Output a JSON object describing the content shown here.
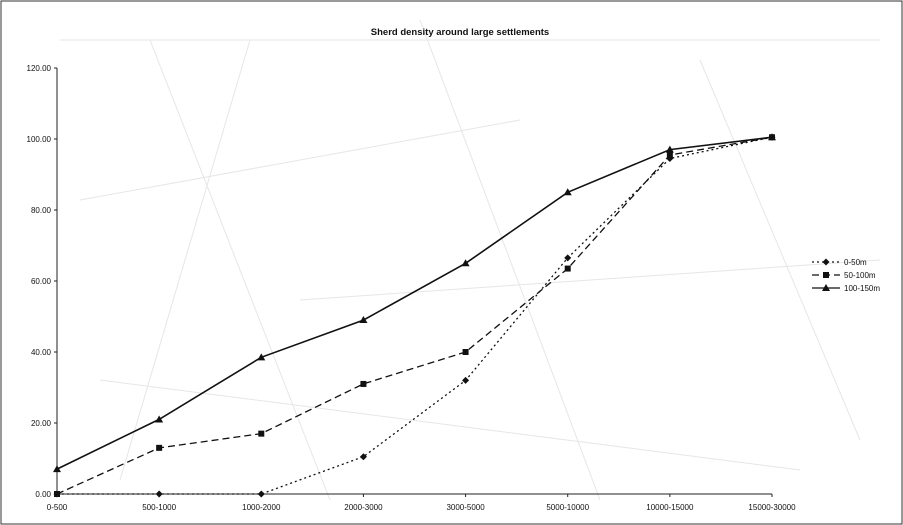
{
  "chart_data": {
    "type": "line",
    "title": "Sherd density around large settlements",
    "xlabel": "",
    "ylabel": "",
    "categories": [
      "0-500",
      "500-1000",
      "1000-2000",
      "2000-3000",
      "3000-5000",
      "5000-10000",
      "10000-15000",
      "15000-30000"
    ],
    "ylim": [
      0,
      120
    ],
    "yticks": [
      "0.00",
      "20.00",
      "40.00",
      "60.00",
      "80.00",
      "100.00",
      "120.00"
    ],
    "grid": false,
    "legend_position": "right",
    "series": [
      {
        "name": "0-50m",
        "marker": "diamond",
        "dash": "dotted",
        "values": [
          0,
          0,
          0,
          10.5,
          32,
          66.5,
          94.5,
          100.5
        ]
      },
      {
        "name": "50-100m",
        "marker": "square",
        "dash": "dashed",
        "values": [
          0,
          13,
          17,
          31,
          40,
          63.5,
          95.5,
          100.5
        ]
      },
      {
        "name": "100-150m",
        "marker": "triangle",
        "dash": "solid",
        "values": [
          7,
          21,
          38.5,
          49,
          65,
          85,
          97,
          100.5
        ]
      }
    ],
    "colors": {
      "line": "#111111",
      "background": "#ffffff",
      "frame": "#333333"
    }
  }
}
